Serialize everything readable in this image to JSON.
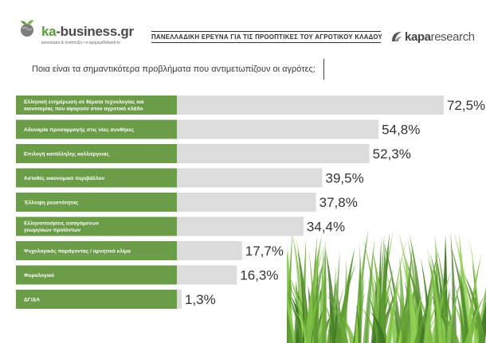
{
  "header": {
    "logo_ka": "ka",
    "logo_rest": "-business.gr",
    "logo_tagline": "καινοτομία & ανάπτυξη  •  e-ορημερίδα/web tv",
    "survey_title": "ΠΑΝΕΛΛΑΔΙΚΗ ΕΡΕΥΝΑ ΓΙΑ ΤΙΣ ΠΡΟΟΠΤΙΚΕΣ ΤΟΥ ΑΓΡΟΤΙΚΟΥ ΚΛΑΔΟΥ",
    "kapa_bold": "kapa",
    "kapa_rest": "research"
  },
  "question": "Ποια είναι τα σημαντικότερα προβλήματα που αντιμετωπίζουν οι αγρότες;",
  "colors": {
    "bar_green": "#6b9c47",
    "bar_gray": "#dcdcdc",
    "logo_green": "#5f9a3a"
  },
  "chart_data": {
    "type": "bar",
    "orientation": "horizontal",
    "categories": [
      [
        "Ελληνική ενημέρωση σε θέματα τεχνολογίας και",
        "καινοτομίας που αφορούν στον αγροτικό κλάδο"
      ],
      [
        "Αδυναμία προσαρμογής στις νέες συνθήκες"
      ],
      [
        "Επιλογή κατάλληλης καλλιέργειας"
      ],
      [
        "Ασταθές οικονομικό περιβάλλον"
      ],
      [
        "Έλλειψη ρευστότητας"
      ],
      [
        "Ελληνοποιήσεις εισαγόμενων",
        "γεωργικών προϊόντων"
      ],
      [
        "Ψυχολογικός παράγοντας / αρνητικό κλίμα"
      ],
      [
        "Φορολογικό"
      ],
      [
        "ΔΓ/ΔΑ"
      ]
    ],
    "values": [
      72.5,
      54.8,
      52.3,
      39.5,
      37.8,
      34.4,
      17.7,
      16.3,
      1.3
    ],
    "value_labels": [
      "72,5%",
      "54,8%",
      "52,3%",
      "39,5%",
      "37,8%",
      "34,4%",
      "17,7%",
      "16,3%",
      "1,3%"
    ],
    "unit": "%",
    "xlim": [
      0,
      100
    ]
  }
}
